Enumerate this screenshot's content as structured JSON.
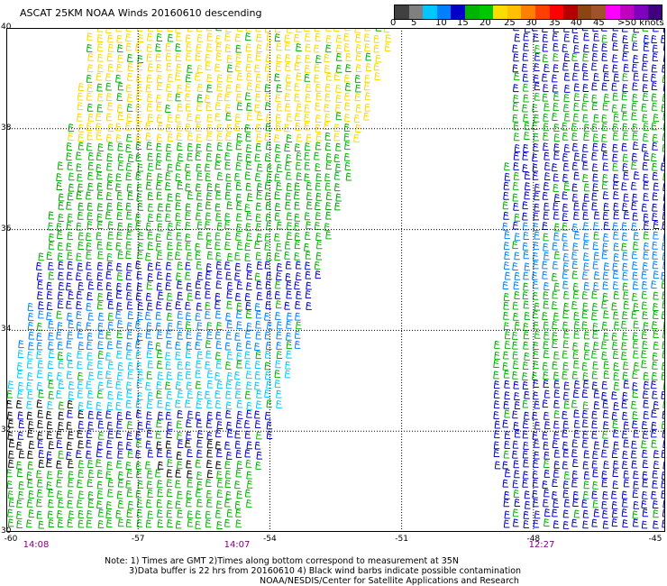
{
  "title": "ASCAT 25KM NOAA Winds 20160610 descending",
  "legend": {
    "colors": [
      "#404040",
      "#808080",
      "#00c8ff",
      "#0080ff",
      "#0000c8",
      "#00b400",
      "#00c800",
      "#ffdc00",
      "#ffc000",
      "#ff8000",
      "#ff4000",
      "#ff0000",
      "#b40000",
      "#8b4513",
      "#a0522d",
      "#ff00ff",
      "#c000c0",
      "#8000c0",
      "#400080"
    ],
    "labels": [
      "0",
      "5",
      "10",
      "15",
      "20",
      "25",
      "30",
      "35",
      "40",
      "45",
      ">50 knots"
    ]
  },
  "axes": {
    "lat_labels": [
      "40",
      "38",
      "36",
      "34",
      "32",
      "30"
    ],
    "lon_labels": [
      "-60",
      "-57",
      "-54",
      "-51",
      "-48",
      "-45"
    ]
  },
  "pass_times": [
    "14:08",
    "14:07",
    "12:27"
  ],
  "notes": [
    "Note: 1) Times are GMT 2)Times along bottom correspond to measurement at 35N",
    "3)Data buffer is 22 hrs from 20160610 4) Black wind barbs indicate possible contamination",
    "NOAA/NESDIS/Center for Satellite Applications and Research"
  ],
  "swaths": [
    {
      "name": "swath-west",
      "bands": [
        {
          "lat": [
            38.6,
            40.0
          ],
          "color": "#ffd700"
        },
        {
          "lat": [
            37.6,
            38.6
          ],
          "color": "#ffd700"
        },
        {
          "lat": [
            36.9,
            37.6
          ],
          "color": "#00b000"
        },
        {
          "lat": [
            36.2,
            36.9
          ],
          "color": "#00a000"
        },
        {
          "lat": [
            35.3,
            36.2
          ],
          "color": "#00b000"
        },
        {
          "lat": [
            34.4,
            35.3
          ],
          "color": "#0000c8"
        },
        {
          "lat": [
            33.6,
            34.4
          ],
          "color": "#0080ff"
        },
        {
          "lat": [
            32.3,
            33.6
          ],
          "color": "#00c8ff"
        },
        {
          "lat": [
            31.4,
            32.3
          ],
          "color": "#0000c8"
        },
        {
          "lat": [
            30.0,
            31.4
          ],
          "color": "#00b000"
        }
      ]
    },
    {
      "name": "swath-east",
      "bands": [
        {
          "lat": [
            38.6,
            40.0
          ],
          "color": "#0000c8"
        },
        {
          "lat": [
            37.6,
            38.6
          ],
          "color": "#00b000"
        },
        {
          "lat": [
            36.0,
            37.6
          ],
          "color": "#0000c8"
        },
        {
          "lat": [
            34.8,
            36.0
          ],
          "color": "#0080ff"
        },
        {
          "lat": [
            33.0,
            34.8
          ],
          "color": "#00b000"
        },
        {
          "lat": [
            30.0,
            33.0
          ],
          "color": "#0000c8"
        }
      ]
    }
  ]
}
